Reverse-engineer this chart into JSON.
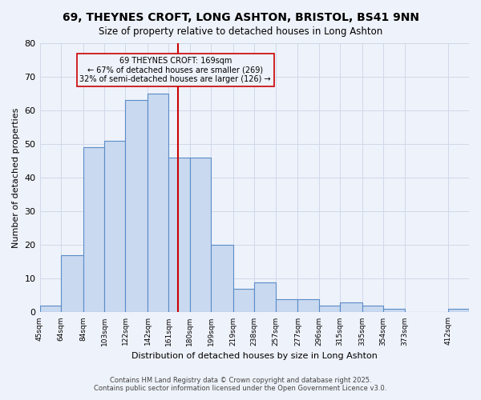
{
  "title1": "69, THEYNES CROFT, LONG ASHTON, BRISTOL, BS41 9NN",
  "title2": "Size of property relative to detached houses in Long Ashton",
  "xlabel": "Distribution of detached houses by size in Long Ashton",
  "ylabel": "Number of detached properties",
  "bins": [
    45,
    64,
    84,
    103,
    122,
    142,
    161,
    180,
    199,
    219,
    238,
    257,
    277,
    296,
    315,
    335,
    354,
    373,
    412,
    431
  ],
  "counts": [
    2,
    17,
    49,
    51,
    63,
    65,
    46,
    46,
    20,
    7,
    9,
    4,
    4,
    2,
    3,
    2,
    1,
    0,
    1
  ],
  "bar_facecolor": "#c9d9f0",
  "bar_edgecolor": "#5b8cc8",
  "grid_color": "#d0d8e8",
  "bg_color": "#eef2fa",
  "property_line_x": 169,
  "property_sqm": 169,
  "property_name": "69 THEYNES CROFT: 169sqm",
  "pct_smaller": 67,
  "n_smaller": 269,
  "pct_larger_semi": 32,
  "n_larger_semi": 126,
  "annotation_box_color": "#cc0000",
  "ylim": [
    0,
    80
  ],
  "yticks": [
    0,
    10,
    20,
    30,
    40,
    50,
    60,
    70,
    80
  ],
  "footnote1": "Contains HM Land Registry data © Crown copyright and database right 2025.",
  "footnote2": "Contains public sector information licensed under the Open Government Licence v3.0."
}
